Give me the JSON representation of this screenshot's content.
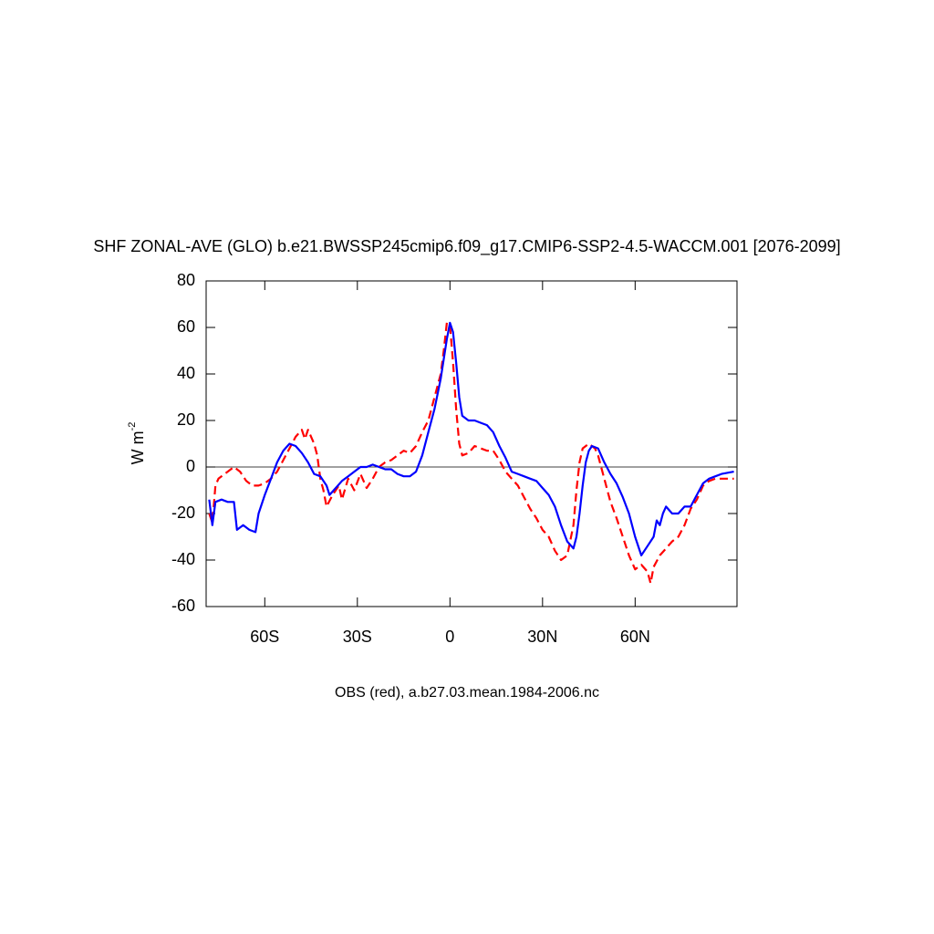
{
  "chart_data": {
    "type": "line",
    "title": "SHF ZONAL-AVE (GLO) b.e21.BWSSP245cmip6.f09_g17.CMIP6-SSP2-4.5-WACCM.001 [2076-2099]",
    "subtitle": "OBS (red), a.b27.03.mean.1984-2006.nc",
    "ylabel": {
      "text": "W m",
      "superscript": "-2"
    },
    "xlim": [
      -79,
      93
    ],
    "xticks": [
      {
        "value": -60,
        "label": "60S"
      },
      {
        "value": -30,
        "label": "30S"
      },
      0,
      {
        "value": 30,
        "label": "30N"
      },
      {
        "value": 60,
        "label": "60N"
      }
    ],
    "ylim": [
      -60,
      80
    ],
    "yticks": [
      -60,
      -40,
      -20,
      0,
      20,
      40,
      60,
      80
    ],
    "reference_line": 0,
    "series": [
      {
        "color": "#0000ff",
        "dash": false,
        "x": [
          -78,
          -77,
          -76,
          -74,
          -72,
          -70,
          -69,
          -67,
          -65,
          -63,
          -62,
          -60,
          -58,
          -56,
          -54,
          -52,
          -50,
          -48,
          -46,
          -44,
          -42,
          -40,
          -39,
          -37,
          -35,
          -33,
          -31,
          -29,
          -27,
          -25,
          -23,
          -21,
          -19,
          -17,
          -15,
          -13,
          -11,
          -9,
          -7,
          -5,
          -3,
          -1,
          0,
          1,
          2,
          3,
          4,
          6,
          8,
          10,
          12,
          14,
          16,
          18,
          20,
          22,
          24,
          26,
          28,
          30,
          32,
          34,
          36,
          38,
          40,
          41,
          42,
          43,
          44,
          45,
          46,
          48,
          50,
          52,
          54,
          56,
          58,
          60,
          62,
          64,
          66,
          67,
          68,
          69,
          70,
          72,
          74,
          76,
          78,
          80,
          82,
          84,
          86,
          88,
          92
        ],
        "values": [
          -14,
          -25,
          -15,
          -14,
          -15,
          -15,
          -27,
          -25,
          -27,
          -28,
          -20,
          -12,
          -5,
          2,
          7,
          10,
          9,
          6,
          2,
          -3,
          -4,
          -8,
          -12,
          -9,
          -6,
          -4,
          -2,
          0,
          0,
          1,
          0,
          -1,
          -1,
          -3,
          -4,
          -4,
          -2,
          5,
          15,
          25,
          38,
          55,
          62,
          58,
          45,
          30,
          22,
          20,
          20,
          19,
          18,
          15,
          9,
          4,
          -2,
          -3,
          -4,
          -5,
          -6,
          -9,
          -12,
          -17,
          -25,
          -32,
          -35,
          -30,
          -20,
          -8,
          2,
          7,
          9,
          8,
          2,
          -3,
          -7,
          -13,
          -20,
          -30,
          -38,
          -34,
          -30,
          -23,
          -25,
          -20,
          -17,
          -20,
          -20,
          -17,
          -17,
          -12,
          -7,
          -5,
          -4,
          -3,
          -2
        ]
      },
      {
        "color": "#ff0000",
        "dash": true,
        "x": [
          -78,
          -77,
          -76,
          -75,
          -73,
          -71,
          -70,
          -68,
          -66,
          -64,
          -62,
          -60,
          -58,
          -56,
          -54,
          -52,
          -50,
          -48,
          -47,
          -46,
          -44,
          -43,
          -42,
          -41,
          -40,
          -38,
          -36,
          -35,
          -33,
          -31,
          -29,
          -27,
          -25,
          -23,
          -21,
          -19,
          -17,
          -15,
          -13,
          -11,
          -9,
          -7,
          -5,
          -3,
          -2,
          -1,
          0,
          1,
          2,
          3,
          4,
          6,
          8,
          10,
          12,
          14,
          16,
          18,
          20,
          22,
          24,
          26,
          28,
          30,
          32,
          34,
          36,
          38,
          40,
          41,
          42,
          43,
          45,
          47,
          48,
          50,
          52,
          54,
          56,
          58,
          60,
          62,
          64,
          65,
          66,
          68,
          70,
          72,
          74,
          76,
          78,
          80,
          82,
          84,
          86,
          90,
          92
        ],
        "values": [
          -20,
          -24,
          -8,
          -5,
          -3,
          -1,
          0,
          -2,
          -6,
          -8,
          -8,
          -7,
          -5,
          -2,
          3,
          8,
          13,
          16,
          12,
          16,
          10,
          5,
          -5,
          -10,
          -17,
          -12,
          -8,
          -14,
          -5,
          -10,
          -3,
          -9,
          -5,
          0,
          2,
          3,
          5,
          7,
          6,
          9,
          15,
          20,
          30,
          40,
          50,
          62,
          61,
          45,
          25,
          10,
          5,
          6,
          9,
          8,
          7,
          7,
          3,
          -2,
          -5,
          -8,
          -13,
          -18,
          -22,
          -27,
          -30,
          -36,
          -40,
          -38,
          -25,
          -10,
          2,
          8,
          10,
          8,
          5,
          -5,
          -15,
          -22,
          -30,
          -38,
          -44,
          -42,
          -45,
          -50,
          -43,
          -38,
          -35,
          -32,
          -30,
          -25,
          -18,
          -14,
          -8,
          -6,
          -5,
          -5,
          -5
        ]
      }
    ]
  }
}
